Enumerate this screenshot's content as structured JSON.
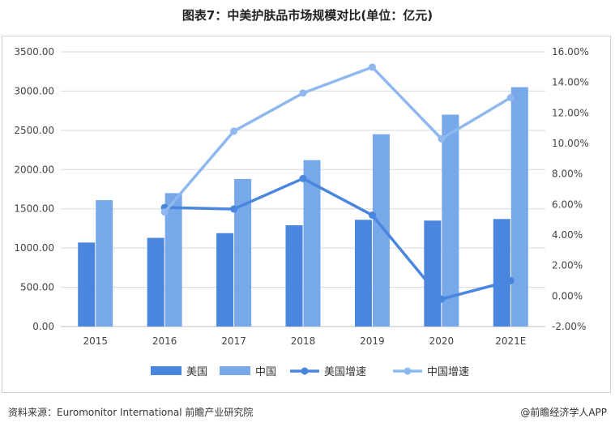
{
  "title": "图表7：中美护肤品市场规模对比(单位：亿元)",
  "footer": {
    "source": "资料来源：Euromonitor International 前瞻产业研究院",
    "brand": "@前瞻经济学人APP"
  },
  "colors": {
    "us_bar": "#4a86de",
    "cn_bar": "#76a8ea",
    "us_line": "#4a86de",
    "cn_line": "#8fb8ef",
    "grid": "#d9d9d9",
    "axis": "#bfbfbf"
  },
  "chart_data": {
    "type": "bar",
    "categories": [
      "2015",
      "2016",
      "2017",
      "2018",
      "2019",
      "2020",
      "2021E"
    ],
    "series": [
      {
        "name": "美国",
        "type": "bar",
        "axis": "left",
        "values": [
          1070,
          1130,
          1190,
          1290,
          1360,
          1350,
          1370
        ]
      },
      {
        "name": "中国",
        "type": "bar",
        "axis": "left",
        "values": [
          1610,
          1700,
          1880,
          2120,
          2450,
          2700,
          3050
        ]
      },
      {
        "name": "美国增速",
        "type": "line",
        "axis": "right",
        "values": [
          null,
          5.8,
          5.7,
          7.7,
          5.3,
          -0.2,
          1.0
        ]
      },
      {
        "name": "中国增速",
        "type": "line",
        "axis": "right",
        "values": [
          null,
          5.5,
          10.8,
          13.3,
          15.0,
          10.3,
          13.0
        ]
      }
    ],
    "ylim": [
      0,
      3500
    ],
    "y_ticks": [
      "0.00",
      "500.00",
      "1000.00",
      "1500.00",
      "2000.00",
      "2500.00",
      "3000.00",
      "3500.00"
    ],
    "y2lim": [
      -2,
      16
    ],
    "y2_ticks": [
      "-2.00%",
      "0.00%",
      "2.00%",
      "4.00%",
      "6.00%",
      "8.00%",
      "10.00%",
      "12.00%",
      "14.00%",
      "16.00%"
    ],
    "grid": true,
    "legend_position": "bottom"
  }
}
